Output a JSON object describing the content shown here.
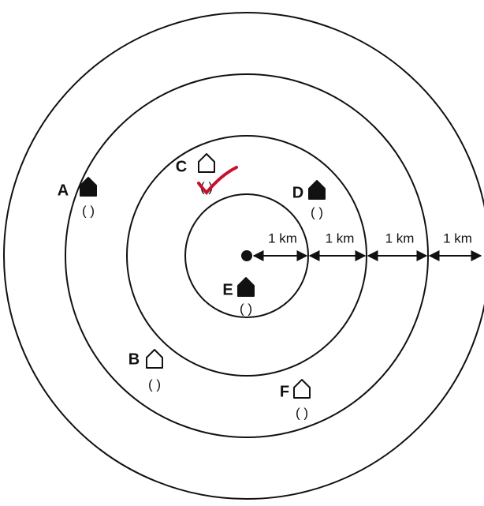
{
  "points": [
    {
      "label": "A",
      "filled": true,
      "answer": "( )"
    },
    {
      "label": "C",
      "filled": false,
      "answer": "( )"
    },
    {
      "label": "D",
      "filled": true,
      "answer": "( )"
    },
    {
      "label": "E",
      "filled": true,
      "answer": "( )"
    },
    {
      "label": "B",
      "filled": false,
      "answer": "( )"
    },
    {
      "label": "F",
      "filled": false,
      "answer": "( )"
    }
  ],
  "distances": [
    "1 km",
    "1 km",
    "1 km",
    "1 km"
  ]
}
